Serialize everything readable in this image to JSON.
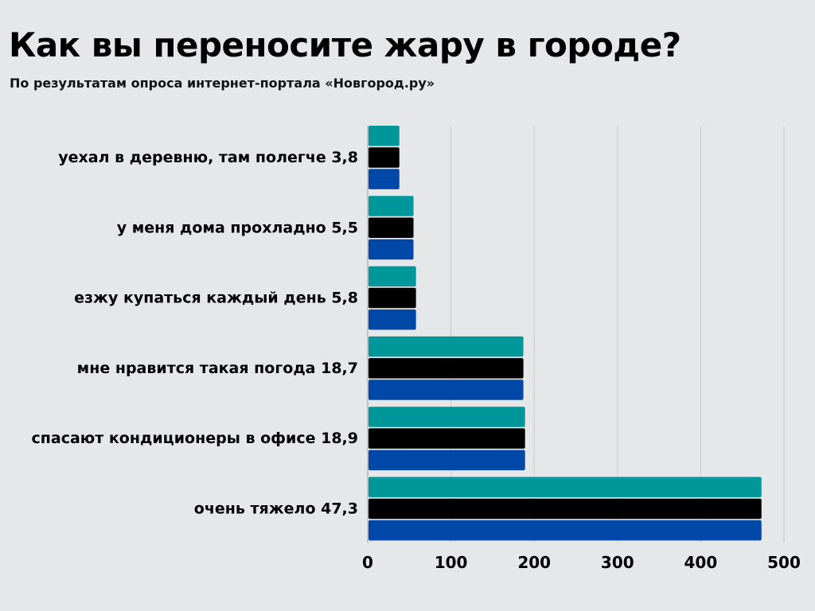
{
  "header": {
    "title": "Как вы переносите жару в городе?",
    "subtitle": "По результатам опроса интернет-портала «Новгород.ру»"
  },
  "chart_data": {
    "type": "bar",
    "orientation": "horizontal",
    "title": "Как вы переносите жару в городе?",
    "subtitle": "По результатам опроса интернет-портала «Новгород.ру»",
    "xlabel": "",
    "ylabel": "",
    "xlim": [
      0,
      500
    ],
    "xticks": [
      0,
      100,
      200,
      300,
      400,
      500
    ],
    "grid": true,
    "legend": "none",
    "categories": [
      "уехал в деревню, там полегче 3,8",
      "у меня дома прохладно 5,5",
      "езжу купаться каждый день 5,8",
      "мне нравится такая погода 18,7",
      "спасают кондиционеры в офисе 18,9",
      "очень тяжело 47,3"
    ],
    "series": [
      {
        "color": "#00979b",
        "values": [
          38,
          55,
          58,
          187,
          189,
          473
        ]
      },
      {
        "color": "#000000",
        "values": [
          38,
          55,
          58,
          187,
          189,
          473
        ]
      },
      {
        "color": "#0048a8",
        "values": [
          38,
          55,
          58,
          187,
          189,
          473
        ]
      }
    ]
  }
}
